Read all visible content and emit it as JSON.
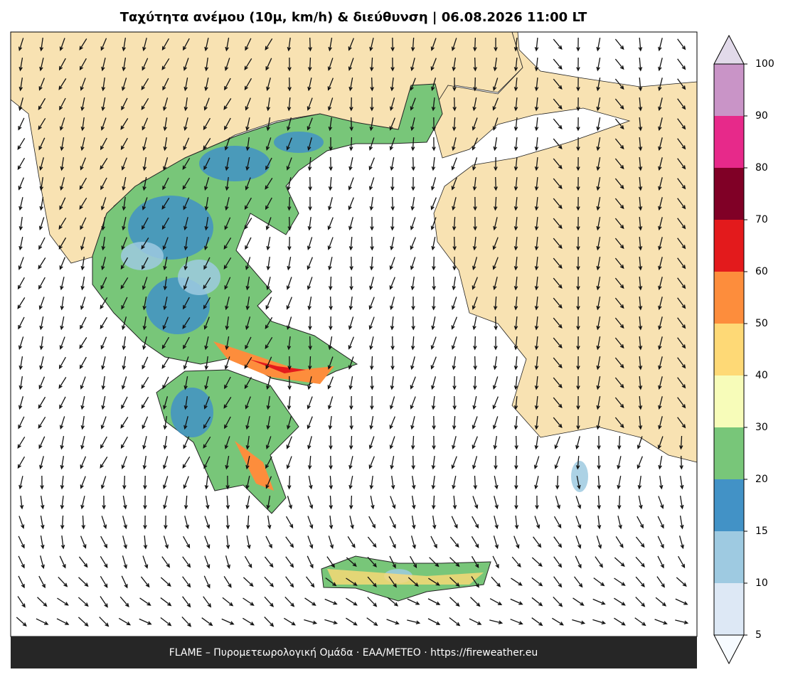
{
  "title": "Ταχύτητα ανέμου (10μ, km/h) & διεύθυνση  |  06.08.2026 11:00 LT",
  "colorbar": {
    "ticks": [
      5,
      10,
      15,
      20,
      30,
      40,
      50,
      60,
      70,
      80,
      90,
      100
    ],
    "colors": [
      "#dde8f5",
      "#9ecae1",
      "#4292c6",
      "#78c679",
      "#f7fcb9",
      "#fed976",
      "#fd8d3c",
      "#e31a1c",
      "#800026",
      "#e7298a",
      "#c994c7"
    ],
    "under_color": "#f7fbff",
    "over_color": "#e2daea"
  },
  "footer": "FLAME – Πυρομετεωρολογική Ομάδα · ΕΑΑ/METEO · https://fireweather.eu"
}
